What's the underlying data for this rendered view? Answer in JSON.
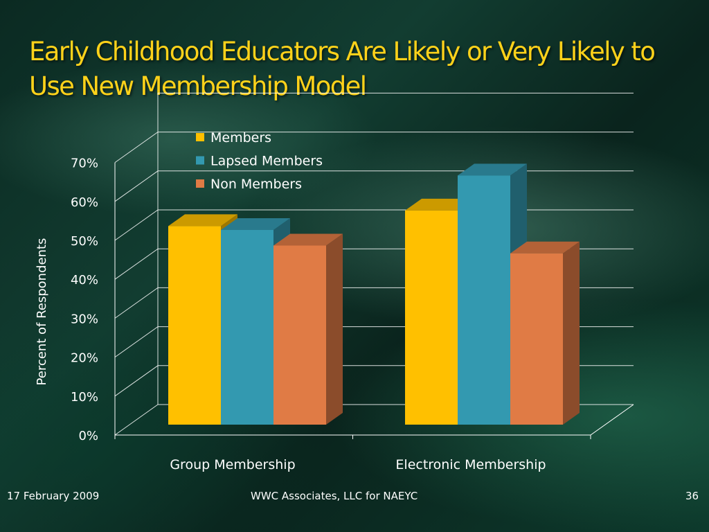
{
  "slide": {
    "title": "Early Childhood Educators Are Likely or Very Likely to Use New Membership Model",
    "footer_date": "17 February 2009",
    "footer_center": "WWC Associates, LLC for NAEYC",
    "page_number": "36"
  },
  "chart_data": {
    "type": "bar",
    "categories": [
      "Group Membership",
      "Electronic Membership"
    ],
    "series": [
      {
        "name": "Members",
        "values": [
          51,
          55
        ],
        "color": "#ffc000"
      },
      {
        "name": "Lapsed Members",
        "values": [
          50,
          64
        ],
        "color": "#3399b0"
      },
      {
        "name": "Non Members",
        "values": [
          46,
          44
        ],
        "color": "#e07b45"
      }
    ],
    "ylabel": "Percent of Respondents",
    "ylim": [
      0,
      70
    ],
    "yticks": [
      "0%",
      "10%",
      "20%",
      "30%",
      "40%",
      "50%",
      "60%",
      "70%"
    ],
    "legend_position": "top",
    "grid": true
  }
}
